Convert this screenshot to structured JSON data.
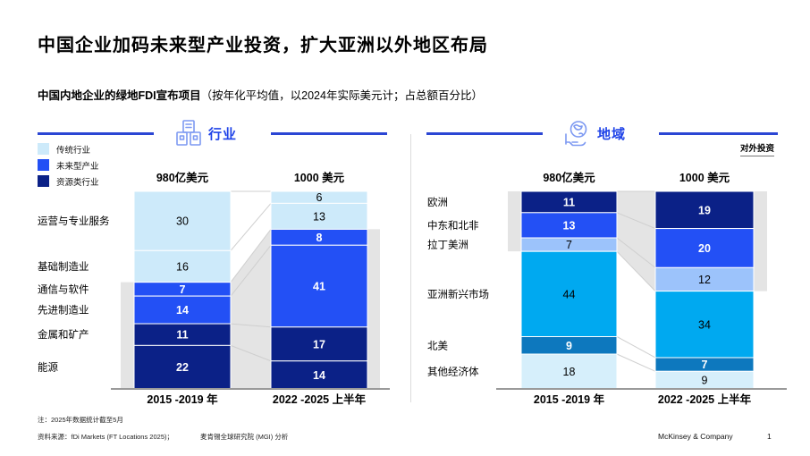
{
  "title": "中国企业加码未来型产业投资，扩大亚洲以外地区布局",
  "subtitle_bold": "中国内地企业的绿地FDI宣布项目",
  "subtitle_rest": "（按年化平均值，以2024年实际美元计；占总额百分比）",
  "note_right": "对外投资",
  "legend": [
    {
      "label": "传统行业",
      "color": "#cdeafa"
    },
    {
      "label": "未来型产业",
      "color": "#2350f5"
    },
    {
      "label": "资源类行业",
      "color": "#0b2187"
    }
  ],
  "palette": {
    "band": "#e4e4e4",
    "connector": "#cfcfcf",
    "header_line": "#2b46d4",
    "header_text": "#1f43e8",
    "icon_blue": "#7d99f2",
    "baseline": "#9a9a9a"
  },
  "chart_data": [
    {
      "type": "bar",
      "subtype": "stacked-percent",
      "panel_title": "行业",
      "icon": "buildings-icon",
      "col_headers": [
        "980亿美元",
        "1000 美元"
      ],
      "x_labels": [
        "2015 -2019 年",
        "2022 -2025 上半年"
      ],
      "categories": [
        "运营与专业服务",
        "基础制造业",
        "通信与软件",
        "先进制造业",
        "金属和矿产",
        "能源"
      ],
      "colors": [
        "#cdeafa",
        "#cdeafa",
        "#2350f5",
        "#2350f5",
        "#0b2187",
        "#0b2187"
      ],
      "label_colors": [
        "#000000",
        "#000000",
        "#ffffff",
        "#ffffff",
        "#ffffff",
        "#ffffff"
      ],
      "series": [
        {
          "name": "2015 -2019 年",
          "values": [
            30,
            16,
            7,
            14,
            11,
            22
          ]
        },
        {
          "name": "2022 -2025 上半年",
          "values": [
            6,
            13,
            8,
            41,
            17,
            14
          ]
        }
      ],
      "highlight_band": {
        "side": "bottom",
        "start_index": 2
      }
    },
    {
      "type": "bar",
      "subtype": "stacked-percent",
      "panel_title": "地域",
      "icon": "globe-hand-icon",
      "col_headers": [
        "980亿美元",
        "1000 美元"
      ],
      "x_labels": [
        "2015 -2019 年",
        "2022 -2025 上半年"
      ],
      "categories": [
        "欧洲",
        "中东和北非",
        "拉丁美洲",
        "亚洲新兴市场",
        "北美",
        "其他经济体"
      ],
      "colors": [
        "#0b2187",
        "#2350f5",
        "#9cc3fb",
        "#00a9f0",
        "#0d78be",
        "#d6effb"
      ],
      "label_colors": [
        "#ffffff",
        "#ffffff",
        "#000000",
        "#000000",
        "#ffffff",
        "#000000"
      ],
      "series": [
        {
          "name": "2015 -2019 年",
          "values": [
            11,
            13,
            7,
            44,
            9,
            18
          ]
        },
        {
          "name": "2022 -2025 上半年",
          "values": [
            19,
            20,
            12,
            34,
            7,
            9
          ]
        }
      ],
      "highlight_band": {
        "side": "top",
        "end_index": 2
      }
    }
  ],
  "footnotes": {
    "note": "注：2025年数据统计截至5月",
    "source_prefix": "资料来源：fDi Markets (FT Locations 2025)；",
    "source_suffix": "麦肯锡全球研究院 (MGI) 分析"
  },
  "footer": {
    "brand": "McKinsey & Company",
    "page": "1"
  }
}
